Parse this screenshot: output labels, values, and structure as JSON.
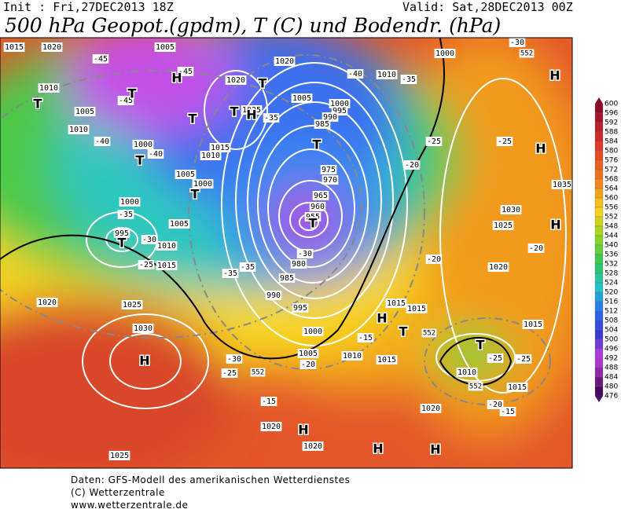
{
  "header": {
    "init": "Init : Fri,27DEC2013 18Z",
    "valid": "Valid: Sat,28DEC2013 00Z",
    "title": "500 hPa Geopot.(gpdm), T (C) und Bodendr. (hPa)"
  },
  "colorbar": {
    "levels": [
      "600",
      "596",
      "592",
      "588",
      "584",
      "580",
      "576",
      "572",
      "568",
      "564",
      "560",
      "556",
      "552",
      "548",
      "544",
      "540",
      "536",
      "532",
      "528",
      "524",
      "520",
      "516",
      "512",
      "508",
      "504",
      "500",
      "496",
      "492",
      "488",
      "484",
      "480",
      "476"
    ]
  },
  "isobar_labels": [
    "1015",
    "1020",
    "1005",
    "1010",
    "1005",
    "1010",
    "1000",
    "1020",
    "1025",
    "1015",
    "1010",
    "1005",
    "1000",
    "1020",
    "1010",
    "1000",
    "1005",
    "1000",
    "995",
    "990",
    "985",
    "975",
    "970",
    "965",
    "960",
    "955",
    "980",
    "985",
    "990",
    "995",
    "1000",
    "1005",
    "1010",
    "1015",
    "1015",
    "1015",
    "1000",
    "995",
    "1005",
    "1010",
    "1015",
    "1020",
    "1025",
    "1030",
    "1030",
    "1025",
    "1020",
    "1035",
    "1015",
    "1010",
    "1015",
    "1020",
    "1020",
    "1025",
    "1020"
  ],
  "temperature_labels": [
    "-45",
    "-45",
    "-45",
    "-40",
    "-40",
    "-35",
    "-40",
    "-35",
    "-25",
    "-20",
    "-25",
    "-35",
    "-30",
    "-25",
    "-35",
    "-35",
    "-30",
    "-20",
    "-20",
    "-15",
    "-20",
    "-30",
    "-25",
    "-15",
    "-20",
    "-15",
    "-25",
    "-25",
    "-30"
  ],
  "height_labels": [
    "552",
    "552",
    "552",
    "552"
  ],
  "pressure_centers": [
    "H",
    "T",
    "T",
    "T",
    "T",
    "H",
    "T",
    "T",
    "T",
    "T",
    "T",
    "T",
    "H",
    "H",
    "T",
    "T",
    "H",
    "H",
    "H",
    "H",
    "H",
    "H"
  ],
  "footer": {
    "source": "Daten: GFS-Modell des amerikanischen Wetterdienstes",
    "copyright": "(C) Wetterzentrale",
    "url": "www.wetterzentrale.de"
  }
}
